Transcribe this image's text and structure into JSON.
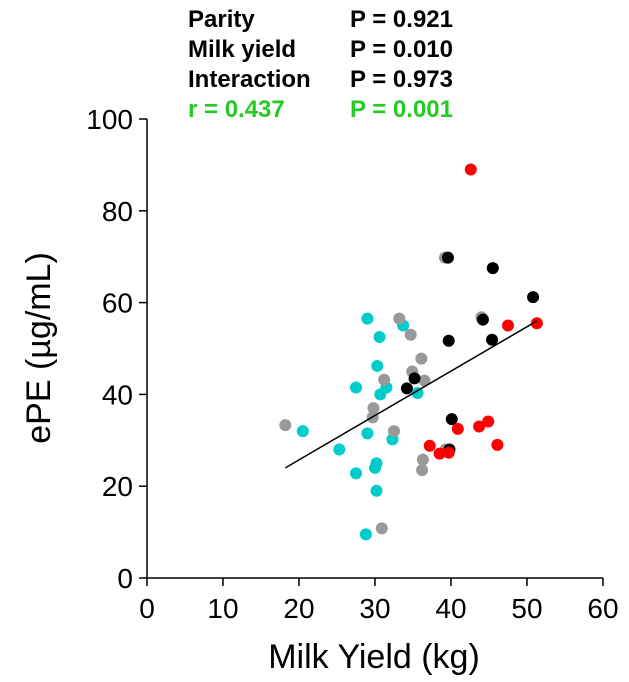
{
  "stats": [
    {
      "label": "Parity",
      "p": "P = 0.921",
      "color": "#000000"
    },
    {
      "label": "Milk yield",
      "p": "P = 0.010",
      "color": "#000000"
    },
    {
      "label": "Interaction",
      "p": "P = 0.973",
      "color": "#000000"
    },
    {
      "label": "r = 0.437",
      "p": "P = 0.001",
      "color": "#22cc22"
    }
  ],
  "chart_data": {
    "type": "scatter",
    "xlabel": "Milk Yield (kg)",
    "ylabel": "ePE (µg/mL)",
    "xlim": [
      0,
      60
    ],
    "ylim": [
      0,
      100
    ],
    "xticks": [
      0,
      10,
      20,
      30,
      40,
      50,
      60
    ],
    "yticks": [
      0,
      20,
      40,
      60,
      80,
      100
    ],
    "grid": false,
    "series": [
      {
        "color": "#00cccc",
        "points": [
          [
            20.5,
            32
          ],
          [
            25.3,
            28
          ],
          [
            27.5,
            41.5
          ],
          [
            27.5,
            22.8
          ],
          [
            29,
            56.5
          ],
          [
            29,
            31.5
          ],
          [
            28.8,
            9.5
          ],
          [
            30,
            24
          ],
          [
            30.2,
            25
          ],
          [
            30.2,
            19
          ],
          [
            30.3,
            46.2
          ],
          [
            30.6,
            52.5
          ],
          [
            30.7,
            40
          ],
          [
            31.5,
            41.5
          ],
          [
            32.3,
            30.2
          ],
          [
            33.7,
            55
          ],
          [
            35.6,
            40.3
          ]
        ]
      },
      {
        "color": "#999999",
        "points": [
          [
            18.2,
            33.3
          ],
          [
            29.7,
            35
          ],
          [
            29.8,
            37
          ],
          [
            30.9,
            10.8
          ],
          [
            31.2,
            43.2
          ],
          [
            32.5,
            32
          ],
          [
            33.2,
            56.5
          ],
          [
            34.7,
            53
          ],
          [
            34.9,
            45
          ],
          [
            36.1,
            47.8
          ],
          [
            36.2,
            23.5
          ],
          [
            36.3,
            25.8
          ],
          [
            36.5,
            43
          ],
          [
            39.2,
            69.8
          ],
          [
            39.3,
            28
          ],
          [
            44,
            56.8
          ]
        ]
      },
      {
        "color": "#000000",
        "points": [
          [
            34.2,
            41.3
          ],
          [
            35.2,
            43.5
          ],
          [
            39.6,
            69.8
          ],
          [
            39.7,
            51.7
          ],
          [
            39.8,
            28
          ],
          [
            40.1,
            34.6
          ],
          [
            44.2,
            56.3
          ],
          [
            45.4,
            51.9
          ],
          [
            45.5,
            67.5
          ],
          [
            50.8,
            61.2
          ]
        ]
      },
      {
        "color": "#ff0000",
        "points": [
          [
            37.2,
            28.8
          ],
          [
            38.5,
            27.1
          ],
          [
            39.7,
            27.3
          ],
          [
            40.9,
            32.5
          ],
          [
            42.6,
            89
          ],
          [
            43.7,
            33
          ],
          [
            44.9,
            34.1
          ],
          [
            46.1,
            29
          ],
          [
            47.5,
            55
          ],
          [
            51.3,
            55.5
          ]
        ]
      }
    ],
    "regression_line": {
      "x": [
        18.2,
        51.3
      ],
      "y": [
        24,
        56
      ],
      "color": "#000000"
    }
  }
}
